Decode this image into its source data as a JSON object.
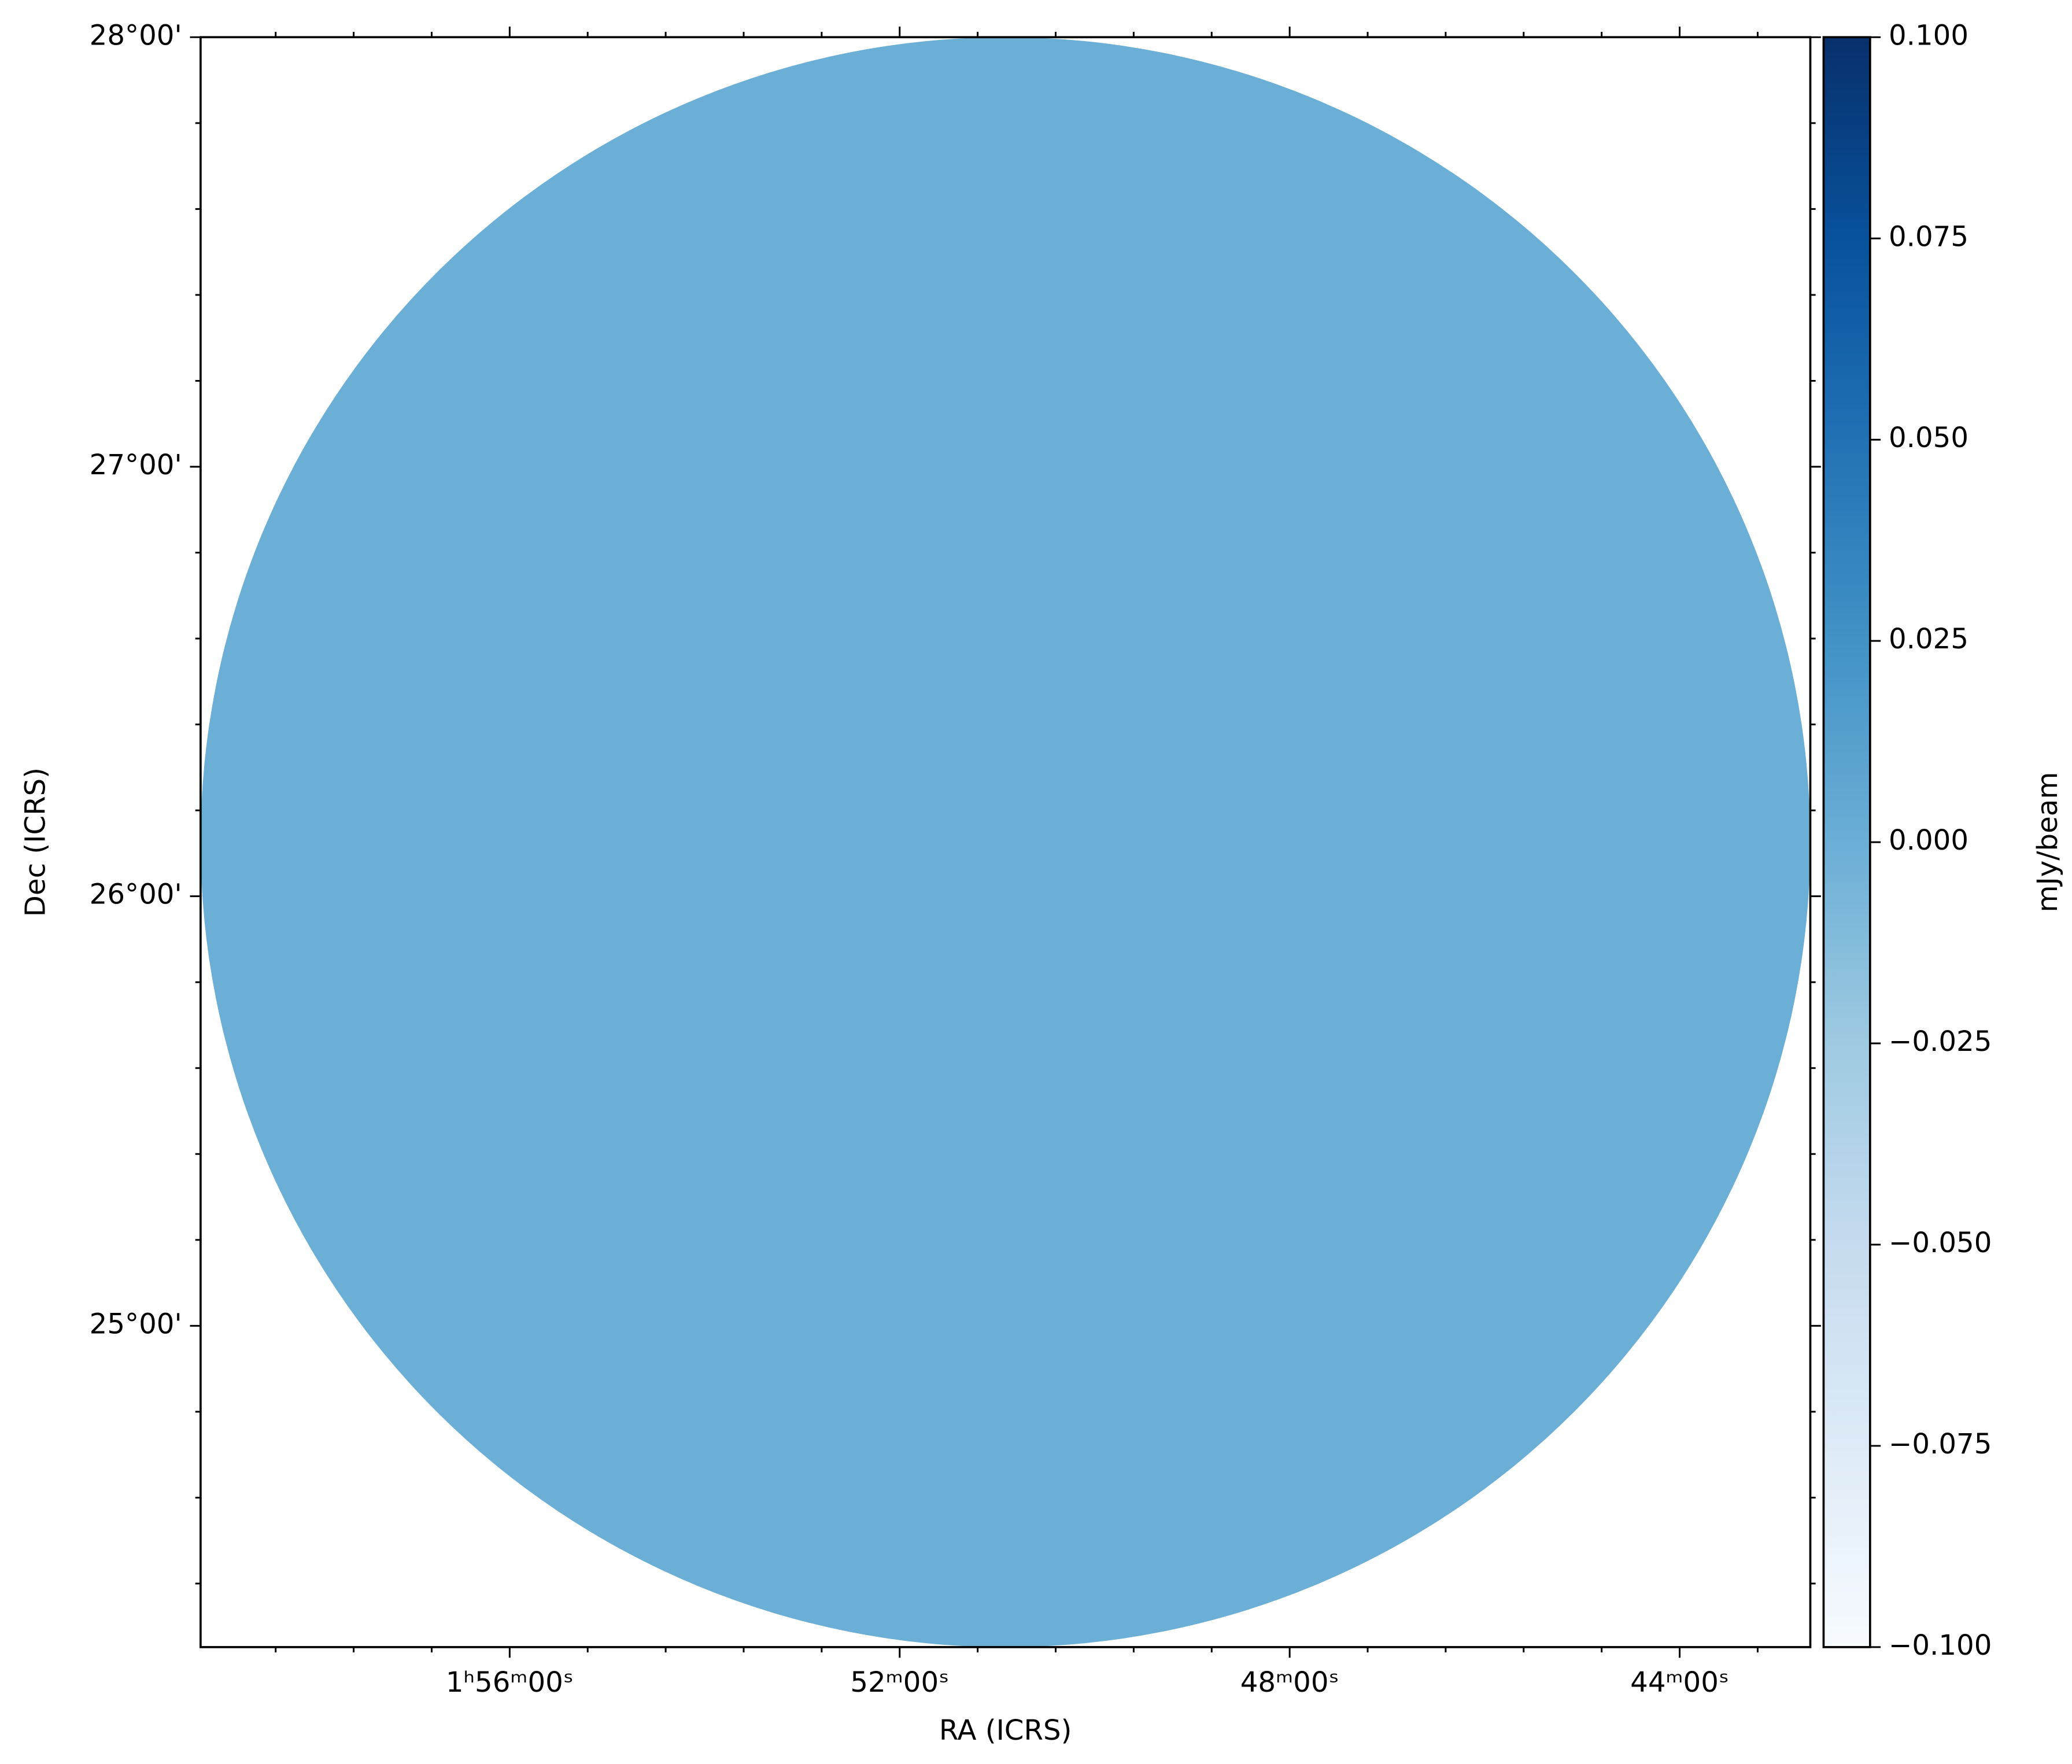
{
  "chart_data": {
    "type": "image",
    "xlabel": "RA (ICRS)",
    "ylabel": "Dec (ICRS)",
    "colorbar_label": "mJy/beam",
    "fill_color": "#6baed6",
    "xlim": [
      119.17,
      102.66
    ],
    "xticks": [
      {
        "value": 116,
        "label": "1ʰ56ᵐ00ˢ"
      },
      {
        "value": 112,
        "label": "52ᵐ00ˢ"
      },
      {
        "value": 108,
        "label": "48ᵐ00ˢ"
      },
      {
        "value": 104,
        "label": "44ᵐ00ˢ"
      }
    ],
    "xticks_minor": [
      118.4,
      117.6,
      116.8,
      115.2,
      114.4,
      113.6,
      112.8,
      111.2,
      110.4,
      109.6,
      108.8,
      107.2,
      106.4,
      105.6,
      104.8,
      103.2
    ],
    "ylim": [
      24.252,
      28.0
    ],
    "yticks": [
      {
        "value": 28,
        "label": "28°00'"
      },
      {
        "value": 27,
        "label": "27°00'"
      },
      {
        "value": 26,
        "label": "26°00'"
      },
      {
        "value": 25,
        "label": "25°00'"
      }
    ],
    "yticks_minor": [
      27.8,
      27.6,
      27.4,
      27.2,
      26.8,
      26.6,
      26.4,
      26.2,
      25.8,
      25.6,
      25.4,
      25.2,
      24.8,
      24.6,
      24.4
    ],
    "clim": [
      -0.1,
      0.1
    ],
    "cticks": [
      {
        "value": 0.1,
        "label": "0.100"
      },
      {
        "value": 0.075,
        "label": "0.075"
      },
      {
        "value": 0.05,
        "label": "0.050"
      },
      {
        "value": 0.025,
        "label": "0.025"
      },
      {
        "value": 0,
        "label": "0.000"
      },
      {
        "value": -0.025,
        "label": "−0.025"
      },
      {
        "value": -0.05,
        "label": "−0.050"
      },
      {
        "value": -0.075,
        "label": "−0.075"
      },
      {
        "value": -0.1,
        "label": "−0.100"
      }
    ],
    "cmap": [
      "#f7fbff",
      "#deebf7",
      "#c6dbef",
      "#9ecae1",
      "#6baed6",
      "#4292c6",
      "#2171b5",
      "#08519c",
      "#08306b"
    ]
  }
}
